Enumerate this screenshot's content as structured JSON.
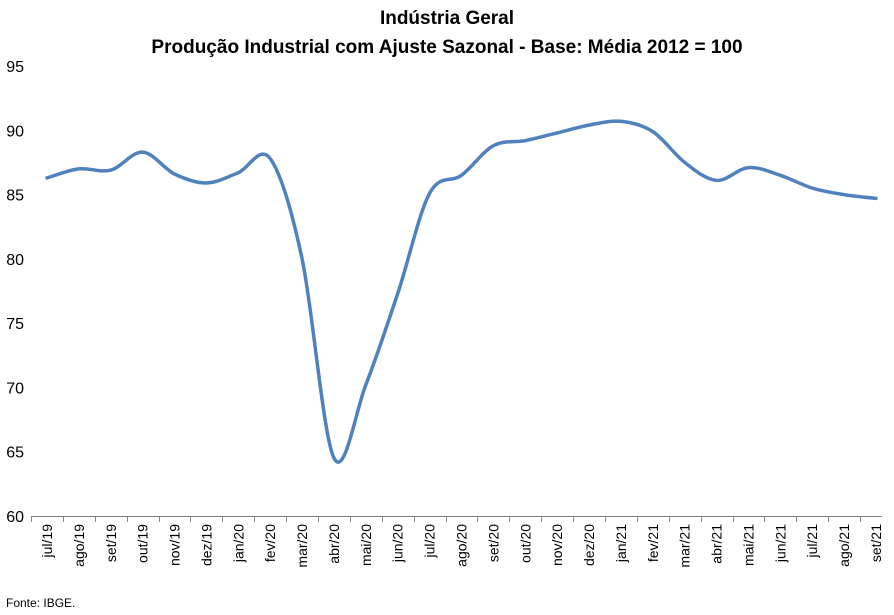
{
  "chart_data": {
    "type": "line",
    "title": "Indústria Geral",
    "subtitle": "Produção Industrial com Ajuste Sazonal - Base: Média 2012 = 100",
    "xlabel": "",
    "ylabel": "",
    "ylim": [
      60,
      95
    ],
    "yticks": [
      60,
      65,
      70,
      75,
      80,
      85,
      90,
      95
    ],
    "grid": false,
    "legend": "none",
    "categories": [
      "jul/19",
      "ago/19",
      "set/19",
      "out/19",
      "nov/19",
      "dez/19",
      "jan/20",
      "fev/20",
      "mar/20",
      "abr/20",
      "mai/20",
      "jun/20",
      "jul/20",
      "ago/20",
      "set/20",
      "out/20",
      "nov/20",
      "dez/20",
      "jan/21",
      "fev/21",
      "mar/21",
      "abr/21",
      "mai/21",
      "jun/21",
      "jul/21",
      "ago/21",
      "set/21"
    ],
    "series": [
      {
        "color": "#4F81BD",
        "values": [
          86.3,
          87.0,
          86.9,
          88.3,
          86.6,
          85.9,
          86.7,
          87.8,
          80.0,
          64.5,
          70.2,
          77.3,
          85.1,
          86.5,
          88.8,
          89.2,
          89.8,
          90.4,
          90.7,
          89.9,
          87.5,
          86.1,
          87.1,
          86.5,
          85.5,
          85.0,
          84.7
        ]
      }
    ]
  },
  "source": "Fonte: IBGE."
}
